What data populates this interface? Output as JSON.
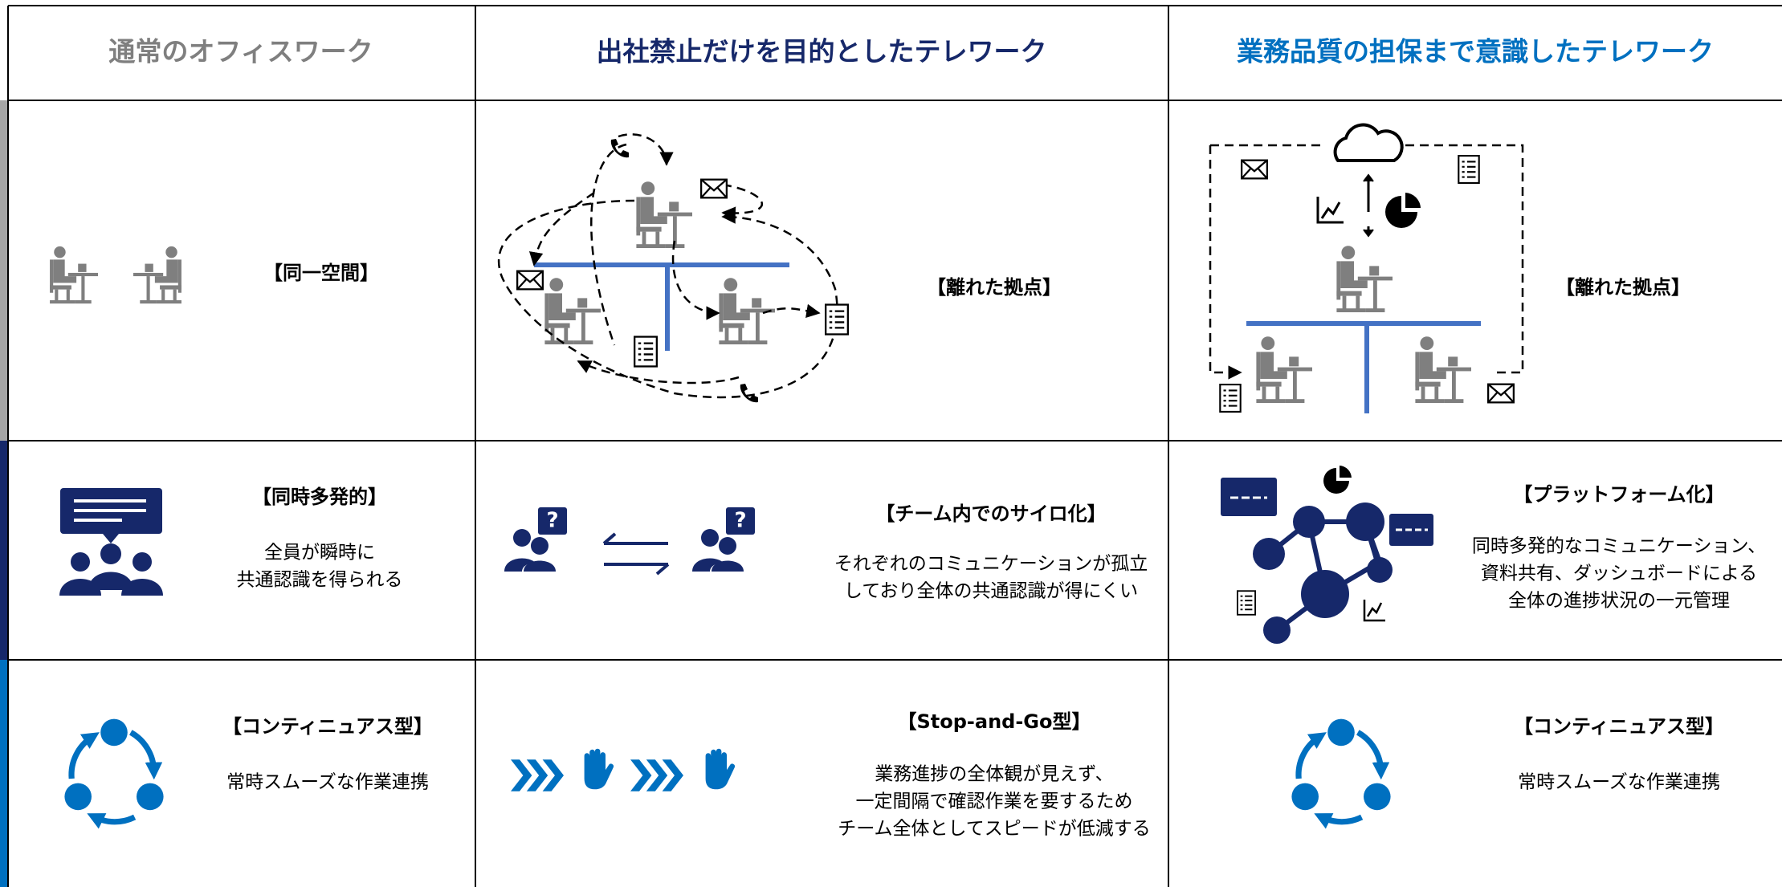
{
  "header": {
    "columns": [
      "通常のオフィスワーク",
      "出社禁止だけを目的としたテレワーク",
      "業務品質の担保まで意識したテレワーク"
    ]
  },
  "rows": [
    [
      {
        "label": "【同一空間】"
      },
      {
        "label": "【離れた拠点】"
      },
      {
        "label": "【離れた拠点】"
      }
    ],
    [
      {
        "label": "【同時多発的】",
        "description": [
          "全員が瞬時に",
          "共通認識を得られる"
        ]
      },
      {
        "label": "【チーム内でのサイロ化】",
        "description": [
          "それぞれのコミュニケーションが孤立",
          "しており全体の共通認識が得にくい"
        ]
      },
      {
        "label": "【プラットフォーム化】",
        "description": [
          "同時多発的なコミュニケーション、",
          "資料共有、ダッシュボードによる",
          "全体の進捗状況の一元管理"
        ]
      }
    ],
    [
      {
        "label": "【コンティニュアス型】",
        "description": [
          "常時スムーズな作業連携"
        ]
      },
      {
        "label": "【Stop-and-Go型】",
        "description": [
          "業務進捗の全体観が見えず、",
          "一定間隔で確認作業を要するため",
          "チーム全体としてスピードが低減する"
        ]
      },
      {
        "label": "【コンティニュアス型】",
        "description": [
          "常時スムーズな作業連携"
        ]
      }
    ]
  ]
}
